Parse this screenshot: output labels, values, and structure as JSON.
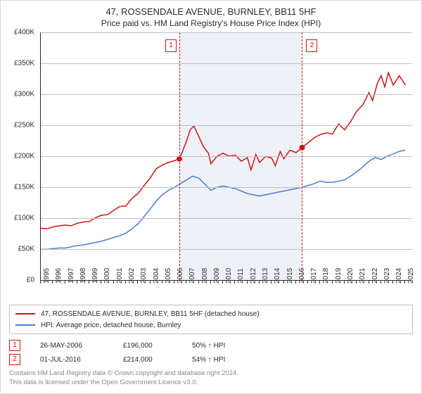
{
  "title_main": "47, ROSSENDALE AVENUE, BURNLEY, BB11 5HF",
  "title_sub": "Price paid vs. HM Land Registry's House Price Index (HPI)",
  "colors": {
    "series_price": "#d11313",
    "series_hpi": "#4a7bd0",
    "sale_point": "#d11313",
    "grid": "#bfbfbf",
    "axis": "#2b2b2b",
    "shade": "#eef2f8",
    "text": "#2b2b2b",
    "foot": "#888888",
    "box": "#bfbfbf"
  },
  "chart": {
    "type": "line",
    "xlim": [
      1995,
      2025.5
    ],
    "ylim": [
      0,
      400000
    ],
    "ytick_step": 50000,
    "ytick_fmt_prefix": "£",
    "ytick_fmt_suffix": "K",
    "xticks": [
      1995,
      1996,
      1997,
      1998,
      1999,
      2000,
      2001,
      2002,
      2003,
      2004,
      2005,
      2006,
      2007,
      2008,
      2009,
      2010,
      2011,
      2012,
      2013,
      2014,
      2015,
      2016,
      2017,
      2018,
      2019,
      2020,
      2021,
      2022,
      2023,
      2024,
      2025
    ],
    "shade_from": 2006.4,
    "shade_to": 2016.5,
    "line_width": 1.5,
    "markers": [
      {
        "idx": "1",
        "x": 2006.4,
        "y": 196000,
        "box_side": "left"
      },
      {
        "idx": "2",
        "x": 2016.5,
        "y": 214000,
        "box_side": "right"
      }
    ],
    "series_price": [
      [
        1995,
        84000
      ],
      [
        1995.5,
        83000
      ],
      [
        1996,
        86000
      ],
      [
        1996.5,
        88000
      ],
      [
        1997,
        89000
      ],
      [
        1997.5,
        88000
      ],
      [
        1998,
        92000
      ],
      [
        1998.5,
        94000
      ],
      [
        1999,
        95000
      ],
      [
        1999.5,
        101000
      ],
      [
        2000,
        105000
      ],
      [
        2000.5,
        106000
      ],
      [
        2001,
        113000
      ],
      [
        2001.5,
        119000
      ],
      [
        2002,
        120000
      ],
      [
        2002.5,
        132000
      ],
      [
        2003,
        140000
      ],
      [
        2003.5,
        153000
      ],
      [
        2004,
        165000
      ],
      [
        2004.5,
        180000
      ],
      [
        2005,
        186000
      ],
      [
        2005.5,
        190000
      ],
      [
        2006,
        193000
      ],
      [
        2006.4,
        196000
      ],
      [
        2006.7,
        210000
      ],
      [
        2007,
        225000
      ],
      [
        2007.3,
        243000
      ],
      [
        2007.6,
        249000
      ],
      [
        2008,
        232000
      ],
      [
        2008.4,
        215000
      ],
      [
        2008.8,
        205000
      ],
      [
        2009,
        188000
      ],
      [
        2009.5,
        200000
      ],
      [
        2010,
        205000
      ],
      [
        2010.5,
        200000
      ],
      [
        2011,
        202000
      ],
      [
        2011.5,
        192000
      ],
      [
        2012,
        198000
      ],
      [
        2012.3,
        178000
      ],
      [
        2012.7,
        203000
      ],
      [
        2013,
        190000
      ],
      [
        2013.5,
        200000
      ],
      [
        2014,
        197000
      ],
      [
        2014.3,
        185000
      ],
      [
        2014.7,
        208000
      ],
      [
        2015,
        196000
      ],
      [
        2015.5,
        210000
      ],
      [
        2016,
        206000
      ],
      [
        2016.5,
        214000
      ],
      [
        2017,
        222000
      ],
      [
        2017.5,
        230000
      ],
      [
        2018,
        235000
      ],
      [
        2018.5,
        238000
      ],
      [
        2019,
        236000
      ],
      [
        2019.5,
        252000
      ],
      [
        2020,
        243000
      ],
      [
        2020.5,
        256000
      ],
      [
        2021,
        273000
      ],
      [
        2021.5,
        283000
      ],
      [
        2022,
        303000
      ],
      [
        2022.3,
        290000
      ],
      [
        2022.7,
        318000
      ],
      [
        2023,
        330000
      ],
      [
        2023.3,
        312000
      ],
      [
        2023.6,
        335000
      ],
      [
        2024,
        315000
      ],
      [
        2024.5,
        330000
      ],
      [
        2025,
        315000
      ]
    ],
    "series_hpi": [
      [
        1995,
        50000
      ],
      [
        1995.5,
        50000
      ],
      [
        1996,
        51000
      ],
      [
        1996.5,
        52000
      ],
      [
        1997,
        52000
      ],
      [
        1997.5,
        54000
      ],
      [
        1998,
        56000
      ],
      [
        1998.5,
        57000
      ],
      [
        1999,
        59000
      ],
      [
        1999.5,
        61000
      ],
      [
        2000,
        63000
      ],
      [
        2000.5,
        66000
      ],
      [
        2001,
        69000
      ],
      [
        2001.5,
        72000
      ],
      [
        2002,
        76000
      ],
      [
        2002.5,
        83000
      ],
      [
        2003,
        91000
      ],
      [
        2003.5,
        103000
      ],
      [
        2004,
        115000
      ],
      [
        2004.5,
        128000
      ],
      [
        2005,
        138000
      ],
      [
        2005.5,
        145000
      ],
      [
        2006,
        150000
      ],
      [
        2006.5,
        156000
      ],
      [
        2007,
        162000
      ],
      [
        2007.5,
        168000
      ],
      [
        2008,
        165000
      ],
      [
        2008.5,
        155000
      ],
      [
        2009,
        145000
      ],
      [
        2009.5,
        150000
      ],
      [
        2010,
        152000
      ],
      [
        2010.5,
        150000
      ],
      [
        2011,
        148000
      ],
      [
        2011.5,
        144000
      ],
      [
        2012,
        140000
      ],
      [
        2012.5,
        138000
      ],
      [
        2013,
        136000
      ],
      [
        2013.5,
        138000
      ],
      [
        2014,
        140000
      ],
      [
        2014.5,
        142000
      ],
      [
        2015,
        144000
      ],
      [
        2015.5,
        146000
      ],
      [
        2016,
        148000
      ],
      [
        2016.5,
        150000
      ],
      [
        2017,
        153000
      ],
      [
        2017.5,
        156000
      ],
      [
        2018,
        160000
      ],
      [
        2018.5,
        158000
      ],
      [
        2019,
        158000
      ],
      [
        2019.5,
        160000
      ],
      [
        2020,
        162000
      ],
      [
        2020.5,
        168000
      ],
      [
        2021,
        175000
      ],
      [
        2021.5,
        183000
      ],
      [
        2022,
        192000
      ],
      [
        2022.5,
        198000
      ],
      [
        2023,
        195000
      ],
      [
        2023.5,
        200000
      ],
      [
        2024,
        204000
      ],
      [
        2024.5,
        208000
      ],
      [
        2025,
        210000
      ]
    ]
  },
  "legend": [
    {
      "color": "#d11313",
      "label": "47, ROSSENDALE AVENUE, BURNLEY, BB11 5HF (detached house)"
    },
    {
      "color": "#4a7bd0",
      "label": "HPI: Average price, detached house, Burnley"
    }
  ],
  "sales": {
    "rows": [
      {
        "idx": "1",
        "date": "26-MAY-2006",
        "price": "£196,000",
        "diff": "50% ↑ HPI"
      },
      {
        "idx": "2",
        "date": "01-JUL-2016",
        "price": "£214,000",
        "diff": "54% ↑ HPI"
      }
    ]
  },
  "footer_line1": "Contains HM Land Registry data © Crown copyright and database right 2024.",
  "footer_line2": "This data is licensed under the Open Government Licence v3.0."
}
